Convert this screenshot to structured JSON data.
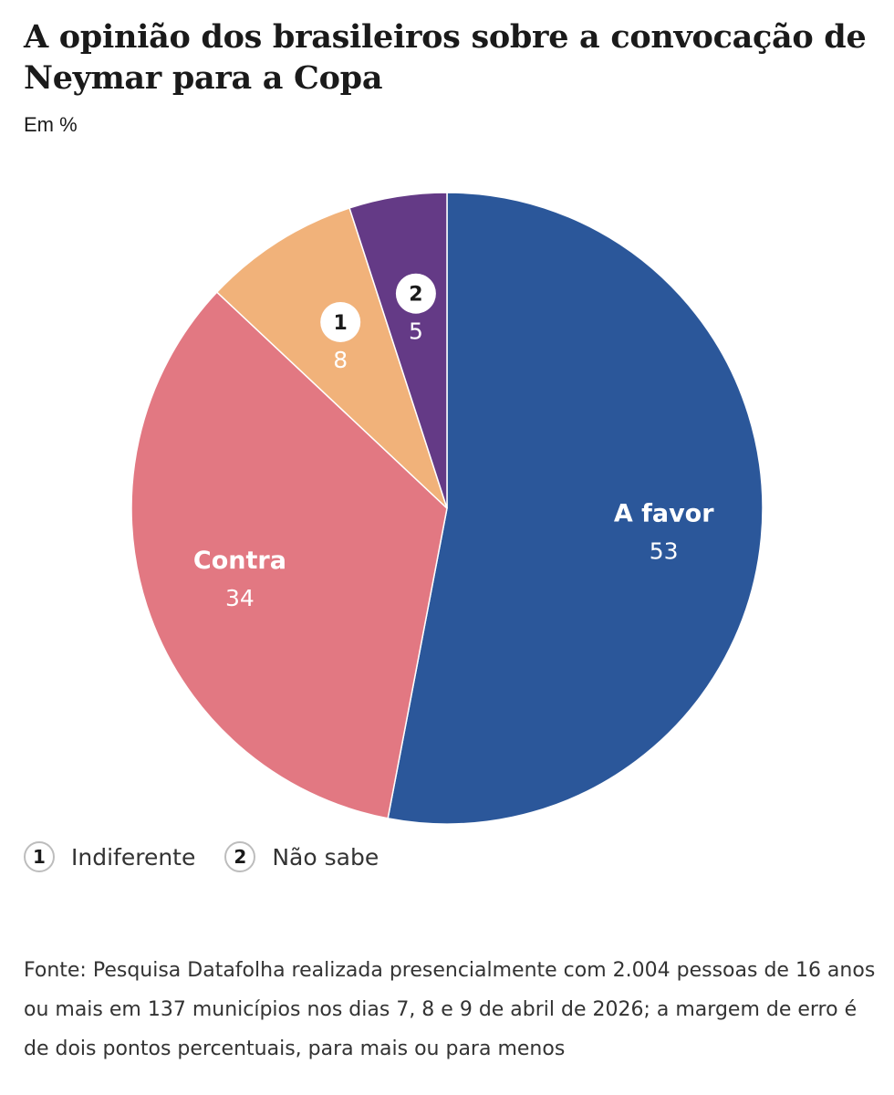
{
  "chart_data": {
    "type": "pie",
    "title": "A opinião dos brasileiros sobre a convocação de Neymar para a Copa",
    "subtitle": "Em %",
    "slices": [
      {
        "label": "A favor",
        "value": 53,
        "color": "#2b579a",
        "inline_label": true
      },
      {
        "label": "Contra",
        "value": 34,
        "color": "#e27882",
        "inline_label": true
      },
      {
        "label": "Indiferente",
        "value": 8,
        "color": "#f1b27a",
        "marker": "1",
        "inline_label": false
      },
      {
        "label": "Não sabe",
        "value": 5,
        "color": "#643a86",
        "marker": "2",
        "inline_label": false
      }
    ],
    "legend": [
      {
        "marker": "1",
        "label": "Indiferente"
      },
      {
        "marker": "2",
        "label": "Não sabe"
      }
    ]
  },
  "source": "Fonte: Pesquisa Datafolha realizada presencialmente com 2.004 pessoas de 16 anos ou mais em 137 municípios nos dias 7, 8 e 9 de abril de 2026; a margem de erro é de dois pontos percentuais, para mais ou para menos"
}
